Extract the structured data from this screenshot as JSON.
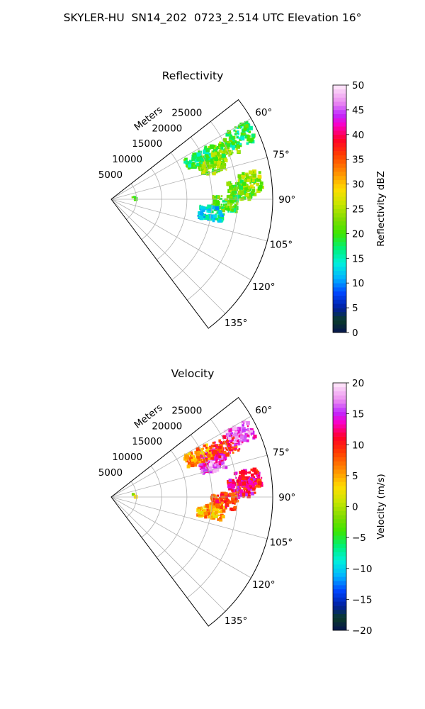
{
  "figure": {
    "title": "SKYLER-HU  SN14_202  0723_2.514 UTC Elevation 16°"
  },
  "chart_data": [
    {
      "type": "heatmap",
      "title": "Reflectivity",
      "radial_label": "Meters",
      "radial_ticks": [
        {
          "value": 5000,
          "label": "5000"
        },
        {
          "value": 10000,
          "label": "10000"
        },
        {
          "value": 15000,
          "label": "15000"
        },
        {
          "value": 20000,
          "label": "20000"
        },
        {
          "value": 25000,
          "label": "25000"
        }
      ],
      "radial_range": [
        0,
        32000
      ],
      "azimuth_range_deg": [
        52,
        143
      ],
      "azimuth_ticks": [
        {
          "value": 60,
          "label": "60°"
        },
        {
          "value": 75,
          "label": "75°"
        },
        {
          "value": 90,
          "label": "90°"
        },
        {
          "value": 105,
          "label": "105°"
        },
        {
          "value": 120,
          "label": "120°"
        },
        {
          "value": 135,
          "label": "135°"
        }
      ],
      "grid": true,
      "colorbar": {
        "label": "Reflectivity dBZ",
        "range": [
          0,
          50
        ],
        "ticks": [
          "0",
          "5",
          "10",
          "15",
          "20",
          "25",
          "30",
          "35",
          "40",
          "45",
          "50"
        ],
        "colormap": "pyart_HomeyerRainbow-like"
      },
      "echo_regions": [
        {
          "azimuth_deg": 69,
          "range_m": 21500,
          "value": 24
        },
        {
          "azimuth_deg": 72,
          "range_m": 21000,
          "value": 23
        },
        {
          "azimuth_deg": 66,
          "range_m": 24500,
          "value": 22
        },
        {
          "azimuth_deg": 64,
          "range_m": 28500,
          "value": 18
        },
        {
          "azimuth_deg": 83,
          "range_m": 27500,
          "value": 24
        },
        {
          "azimuth_deg": 86,
          "range_m": 26000,
          "value": 22
        },
        {
          "azimuth_deg": 92,
          "range_m": 22500,
          "value": 20
        },
        {
          "azimuth_deg": 65,
          "range_m": 19000,
          "value": 18
        },
        {
          "azimuth_deg": 98,
          "range_m": 20000,
          "value": 14
        },
        {
          "azimuth_deg": 84,
          "range_m": 4500,
          "value": 18
        },
        {
          "azimuth_deg": 89,
          "range_m": 5000,
          "value": 17
        }
      ]
    },
    {
      "type": "heatmap",
      "title": "Velocity",
      "radial_label": "Meters",
      "radial_ticks": [
        {
          "value": 5000,
          "label": "5000"
        },
        {
          "value": 10000,
          "label": "10000"
        },
        {
          "value": 15000,
          "label": "15000"
        },
        {
          "value": 20000,
          "label": "20000"
        },
        {
          "value": 25000,
          "label": "25000"
        }
      ],
      "radial_range": [
        0,
        32000
      ],
      "azimuth_range_deg": [
        52,
        143
      ],
      "azimuth_ticks": [
        {
          "value": 60,
          "label": "60°"
        },
        {
          "value": 75,
          "label": "75°"
        },
        {
          "value": 90,
          "label": "90°"
        },
        {
          "value": 105,
          "label": "105°"
        },
        {
          "value": 120,
          "label": "120°"
        },
        {
          "value": 135,
          "label": "135°"
        }
      ],
      "grid": true,
      "colorbar": {
        "label": "Velocity (m/s)",
        "range": [
          -20,
          20
        ],
        "ticks": [
          "−20",
          "−15",
          "−10",
          "−5",
          "0",
          "5",
          "10",
          "15",
          "20"
        ],
        "colormap": "pyart_HomeyerRainbow-like"
      },
      "echo_regions": [
        {
          "azimuth_deg": 69,
          "range_m": 21500,
          "value": 14
        },
        {
          "azimuth_deg": 72,
          "range_m": 21000,
          "value": 16
        },
        {
          "azimuth_deg": 66,
          "range_m": 24500,
          "value": 10
        },
        {
          "azimuth_deg": 64,
          "range_m": 28500,
          "value": 16
        },
        {
          "azimuth_deg": 83,
          "range_m": 27500,
          "value": 11
        },
        {
          "azimuth_deg": 86,
          "range_m": 26000,
          "value": 12
        },
        {
          "azimuth_deg": 92,
          "range_m": 22500,
          "value": 9
        },
        {
          "azimuth_deg": 65,
          "range_m": 19000,
          "value": 6
        },
        {
          "azimuth_deg": 98,
          "range_m": 20000,
          "value": 5
        },
        {
          "azimuth_deg": 84,
          "range_m": 4500,
          "value": 1
        },
        {
          "azimuth_deg": 89,
          "range_m": 5000,
          "value": 2
        }
      ]
    }
  ]
}
